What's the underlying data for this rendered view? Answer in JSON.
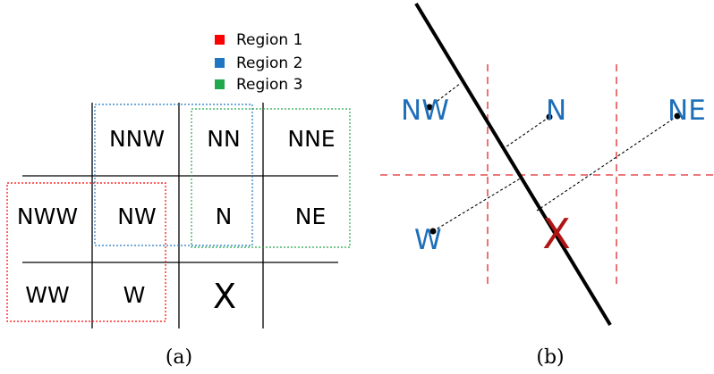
{
  "colors": {
    "region1": "#ff0000",
    "region2": "#1f77c4",
    "region3": "#21a84a",
    "grid_line": "#000000",
    "dashed_red": "#e0282e",
    "label_blue": "#1f6fb8",
    "x_red": "#b01515"
  },
  "legend": [
    {
      "label": "Region 1",
      "color_key": "region1"
    },
    {
      "label": "Region 2",
      "color_key": "region2"
    },
    {
      "label": "Region 3",
      "color_key": "region3"
    }
  ],
  "panel_a": {
    "caption": "(a)",
    "cells": {
      "NNW": "NNW",
      "NN": "NN",
      "NNE": "NNE",
      "NWW": "NWW",
      "NW": "NW",
      "N": "N",
      "NE": "NE",
      "WW": "WW",
      "W": "W",
      "X": "X"
    }
  },
  "panel_b": {
    "caption": "(b)",
    "points": {
      "NW": "NW",
      "N": "N",
      "NE": "NE",
      "W": "W",
      "X": "X"
    }
  }
}
